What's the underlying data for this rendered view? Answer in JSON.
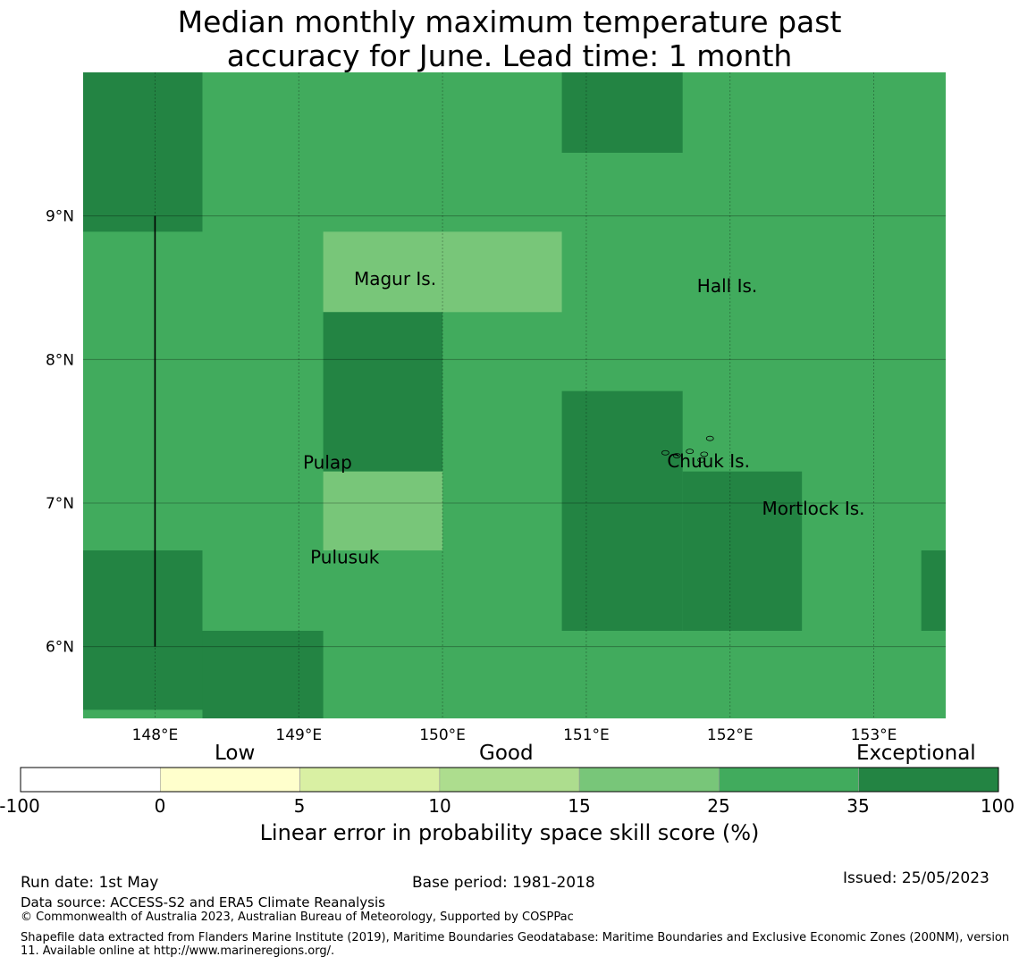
{
  "title_line1": "Median monthly maximum temperature past",
  "title_line2": "accuracy for June. Lead time: 1 month",
  "map": {
    "lon_range": [
      147.5,
      153.5
    ],
    "lat_range": [
      5.5,
      10.0
    ],
    "lon_ticks": [
      148,
      149,
      150,
      151,
      152,
      153
    ],
    "lon_tick_labels": [
      "148°E",
      "149°E",
      "150°E",
      "151°E",
      "152°E",
      "153°E"
    ],
    "lat_ticks": [
      9,
      8,
      7,
      6
    ],
    "lat_tick_labels": [
      "9°N",
      "8°N",
      "7°N",
      "6°N"
    ],
    "colors": {
      "base": "#41ab5d",
      "exceptional": "#238443",
      "good15_25": "#78c679"
    },
    "cells": [
      {
        "lon0": 147.5,
        "lon1": 148.33,
        "lat0": 8.89,
        "lat1": 10.0,
        "cls": "exceptional"
      },
      {
        "lon0": 150.83,
        "lon1": 151.67,
        "lat0": 9.44,
        "lat1": 10.0,
        "cls": "exceptional"
      },
      {
        "lon0": 149.17,
        "lon1": 150.83,
        "lat0": 8.33,
        "lat1": 8.89,
        "cls": "good15_25"
      },
      {
        "lon0": 149.17,
        "lon1": 150.0,
        "lat0": 7.22,
        "lat1": 8.33,
        "cls": "exceptional"
      },
      {
        "lon0": 149.17,
        "lon1": 150.0,
        "lat0": 6.67,
        "lat1": 7.22,
        "cls": "good15_25"
      },
      {
        "lon0": 150.83,
        "lon1": 151.67,
        "lat0": 6.11,
        "lat1": 7.78,
        "cls": "exceptional"
      },
      {
        "lon0": 151.67,
        "lon1": 152.5,
        "lat0": 6.11,
        "lat1": 7.22,
        "cls": "exceptional"
      },
      {
        "lon0": 153.33,
        "lon1": 153.5,
        "lat0": 6.11,
        "lat1": 6.67,
        "cls": "exceptional"
      },
      {
        "lon0": 147.5,
        "lon1": 148.33,
        "lat0": 5.56,
        "lat1": 6.67,
        "cls": "exceptional"
      },
      {
        "lon0": 148.33,
        "lon1": 149.17,
        "lat0": 5.5,
        "lat1": 6.11,
        "cls": "exceptional"
      }
    ],
    "boundary_line": {
      "lon": 148.0,
      "lat0": 6.0,
      "lat1": 9.0
    },
    "places": [
      {
        "name": "Magur Is.",
        "lon": 149.67,
        "lat": 8.52
      },
      {
        "name": "Hall Is.",
        "lon": 151.98,
        "lat": 8.47
      },
      {
        "name": "Pulap",
        "lon": 149.2,
        "lat": 7.24
      },
      {
        "name": "Chuuk Is.",
        "lon": 151.85,
        "lat": 7.25
      },
      {
        "name": "Mortlock Is.",
        "lon": 152.58,
        "lat": 6.92
      },
      {
        "name": "Pulusuk",
        "lon": 149.32,
        "lat": 6.58
      }
    ]
  },
  "colorbar": {
    "categories": [
      "Low",
      "Good",
      "Exceptional"
    ],
    "tick_labels": [
      "-100",
      "0",
      "5",
      "10",
      "15",
      "25",
      "35",
      "100"
    ],
    "colors": [
      "#ffffff",
      "#ffffcc",
      "#d9f0a3",
      "#addd8e",
      "#78c679",
      "#41ab5d",
      "#238443"
    ],
    "label": "Linear error in probability space skill score (%)"
  },
  "footer": {
    "run_date": "Run date: 1st May",
    "base_period": "Base period: 1981-2018",
    "issued": "Issued: 25/05/2023",
    "data_source": "Data source: ACCESS-S2 and ERA5 Climate Reanalysis",
    "copyright": "© Commonwealth of Australia 2023, Australian Bureau of Meteorology, Supported by COSPPac",
    "shapefile": "Shapefile data extracted from Flanders Marine Institute (2019), Maritime Boundaries Geodatabase: Maritime Boundaries and Exclusive Economic Zones (200NM), version 11. Available online at http://www.marineregions.org/."
  }
}
